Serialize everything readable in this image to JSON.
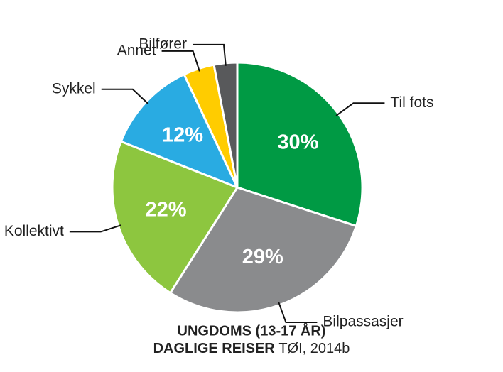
{
  "chart_data": {
    "type": "pie",
    "categories": [
      "Til fots",
      "Bilpassasjer",
      "Kollektivt",
      "Sykkel",
      "Annet",
      "Bilfører"
    ],
    "values": [
      30,
      29,
      22,
      12,
      4,
      3
    ],
    "value_labels": [
      "30%",
      "29%",
      "22%",
      "12%",
      null,
      null
    ],
    "colors": [
      "#009a44",
      "#8a8b8d",
      "#8dc63f",
      "#29abe2",
      "#ffcc00",
      "#58595b"
    ],
    "title": "UNGDOMS (13-17 ÅR)",
    "subtitle": "DAGLIGE REISER",
    "source": "TØI, 2014b"
  }
}
